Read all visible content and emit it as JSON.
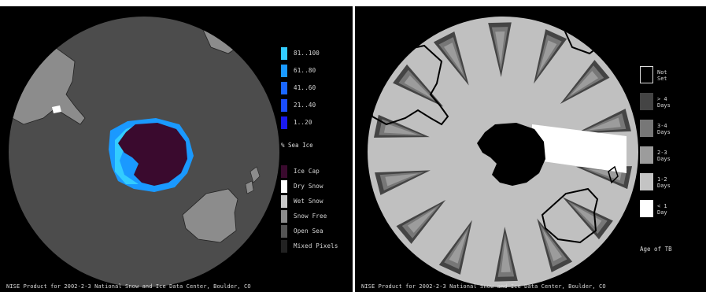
{
  "left_panel": {
    "caption": "NISE Product for 2002-2-3 National Snow and Ice Data Center, Boulder, CO",
    "sea_ice_title": "% Sea Ice",
    "sea_ice_legend": [
      {
        "label": "81..100",
        "color": "#33ccff"
      },
      {
        "label": "61..80",
        "color": "#1a99ff"
      },
      {
        "label": "41..60",
        "color": "#1a66ff"
      },
      {
        "label": "21..40",
        "color": "#1a4dff"
      },
      {
        "label": "1..20",
        "color": "#1a1aee"
      }
    ],
    "surface_legend": [
      {
        "label": "Ice Cap",
        "color": "#3a0a2e"
      },
      {
        "label": "Dry Snow",
        "color": "#ffffff"
      },
      {
        "label": "Wet Snow",
        "color": "#c8c8c8"
      },
      {
        "label": "Snow Free",
        "color": "#8c8c8c"
      },
      {
        "label": "Open Sea",
        "color": "#555555"
      },
      {
        "label": "Mixed Pixels",
        "color": "#222222"
      }
    ],
    "colors": {
      "ocean": "#4c4c4c",
      "land": "#8c8c8c",
      "ice_cap": "#3a0a2e"
    }
  },
  "right_panel": {
    "caption": "NISE Product for 2002-2-3 National Snow and Ice Data Center, Boulder, CO",
    "age_title": "Age of TB",
    "age_legend": [
      {
        "label": "Not\nSet",
        "color": "#000000"
      },
      {
        "label": "> 4\nDays",
        "color": "#444444"
      },
      {
        "label": "3-4\nDays",
        "color": "#777777"
      },
      {
        "label": "2-3\nDays",
        "color": "#9c9c9c"
      },
      {
        "label": "1-2\nDays",
        "color": "#c4c4c4"
      },
      {
        "label": "< 1\nDay",
        "color": "#ffffff"
      }
    ],
    "colors": {
      "disk": "#c0c0c0",
      "continent": "#000000"
    }
  }
}
